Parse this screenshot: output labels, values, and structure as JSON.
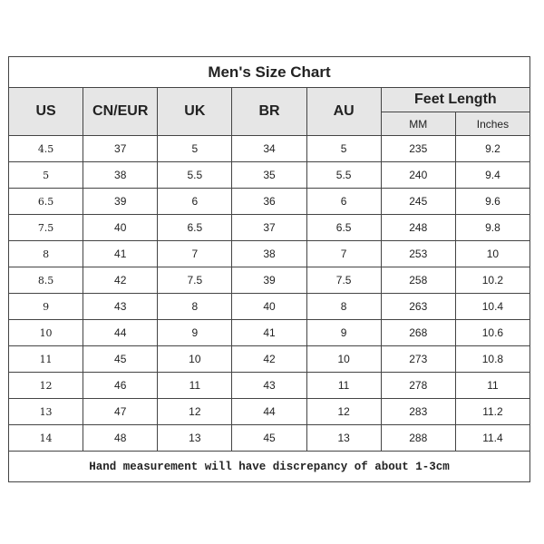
{
  "title": "Men's Size Chart",
  "headers": [
    "US",
    "CN/EUR",
    "UK",
    "BR",
    "AU"
  ],
  "feet_length": {
    "label": "Feet Length",
    "sub": [
      "MM",
      "Inches"
    ]
  },
  "rows": [
    [
      "4.5",
      "37",
      "5",
      "34",
      "5",
      "235",
      "9.2"
    ],
    [
      "5",
      "38",
      "5.5",
      "35",
      "5.5",
      "240",
      "9.4"
    ],
    [
      "6.5",
      "39",
      "6",
      "36",
      "6",
      "245",
      "9.6"
    ],
    [
      "7.5",
      "40",
      "6.5",
      "37",
      "6.5",
      "248",
      "9.8"
    ],
    [
      "8",
      "41",
      "7",
      "38",
      "7",
      "253",
      "10"
    ],
    [
      "8.5",
      "42",
      "7.5",
      "39",
      "7.5",
      "258",
      "10.2"
    ],
    [
      "9",
      "43",
      "8",
      "40",
      "8",
      "263",
      "10.4"
    ],
    [
      "10",
      "44",
      "9",
      "41",
      "9",
      "268",
      "10.6"
    ],
    [
      "11",
      "45",
      "10",
      "42",
      "10",
      "273",
      "10.8"
    ],
    [
      "12",
      "46",
      "11",
      "43",
      "11",
      "278",
      "11"
    ],
    [
      "13",
      "47",
      "12",
      "44",
      "12",
      "283",
      "11.2"
    ],
    [
      "14",
      "48",
      "13",
      "45",
      "13",
      "288",
      "11.4"
    ]
  ],
  "footer": "Hand measurement will have discrepancy of about 1-3cm",
  "colors": {
    "header_bg": "#e6e6e6",
    "border": "#444444"
  }
}
